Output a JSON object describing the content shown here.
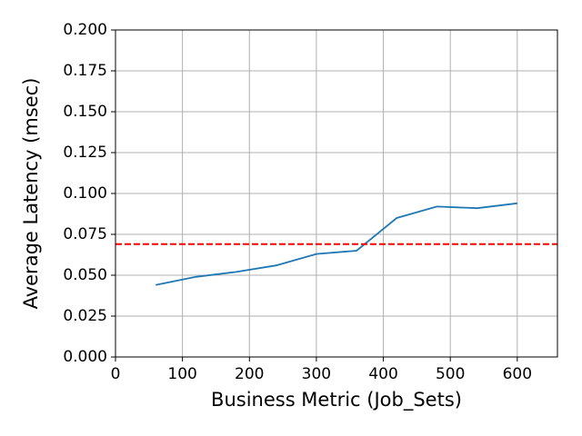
{
  "chart_data": {
    "type": "line",
    "x_label": "Business Metric (Job_Sets)",
    "y_label": "Average Latency (msec)",
    "x": [
      60,
      120,
      180,
      240,
      300,
      360,
      420,
      480,
      540,
      600
    ],
    "series": [
      {
        "color": "#1f77b4",
        "values": [
          0.044,
          0.049,
          0.052,
          0.056,
          0.063,
          0.065,
          0.085,
          0.092,
          0.091,
          0.094
        ]
      }
    ],
    "reference_line": {
      "value": 0.069,
      "color": "#ff0000",
      "style": "dashed"
    },
    "xlim": [
      0,
      660
    ],
    "xticks": [
      0,
      100,
      200,
      300,
      400,
      500,
      600
    ],
    "ylim": [
      0,
      0.2
    ],
    "yticks": [
      {
        "value": 0,
        "label": "0.000"
      },
      {
        "value": 0.025,
        "label": "0.025"
      },
      {
        "value": 0.05,
        "label": "0.050"
      },
      {
        "value": 0.075,
        "label": "0.075"
      },
      {
        "value": 0.1,
        "label": "0.100"
      },
      {
        "value": 0.125,
        "label": "0.125"
      },
      {
        "value": 0.15,
        "label": "0.150"
      },
      {
        "value": 0.175,
        "label": "0.175"
      },
      {
        "value": 0.2,
        "label": "0.200"
      }
    ],
    "grid": true
  }
}
